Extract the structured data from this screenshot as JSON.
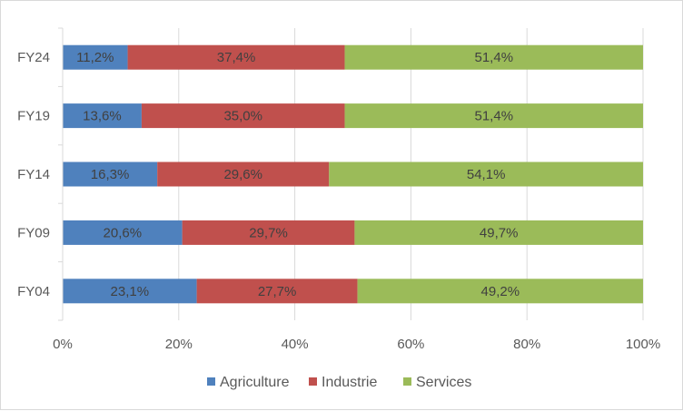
{
  "chart_data": {
    "type": "bar",
    "orientation": "horizontal",
    "stacked": "percent",
    "categories": [
      "FY24",
      "FY19",
      "FY14",
      "FY09",
      "FY04"
    ],
    "series": [
      {
        "name": "Agriculture",
        "color": "#4f81bd",
        "values": [
          11.2,
          13.6,
          16.3,
          20.6,
          23.1
        ],
        "labels": [
          "11,2%",
          "13,6%",
          "16,3%",
          "20,6%",
          "23,1%"
        ]
      },
      {
        "name": "Industrie",
        "color": "#c0504d",
        "values": [
          37.4,
          35.0,
          29.6,
          29.7,
          27.7
        ],
        "labels": [
          "37,4%",
          "35,0%",
          "29,6%",
          "29,7%",
          "27,7%"
        ]
      },
      {
        "name": "Services",
        "color": "#9bbb59",
        "values": [
          51.4,
          51.4,
          54.1,
          49.7,
          49.2
        ],
        "labels": [
          "51,4%",
          "51,4%",
          "54,1%",
          "49,7%",
          "49,2%"
        ]
      }
    ],
    "x_ticks": [
      "0%",
      "20%",
      "40%",
      "60%",
      "80%",
      "100%"
    ],
    "xlim": [
      0,
      100
    ],
    "grid": true,
    "legend_position": "bottom",
    "title": "",
    "xlabel": "",
    "ylabel": ""
  }
}
